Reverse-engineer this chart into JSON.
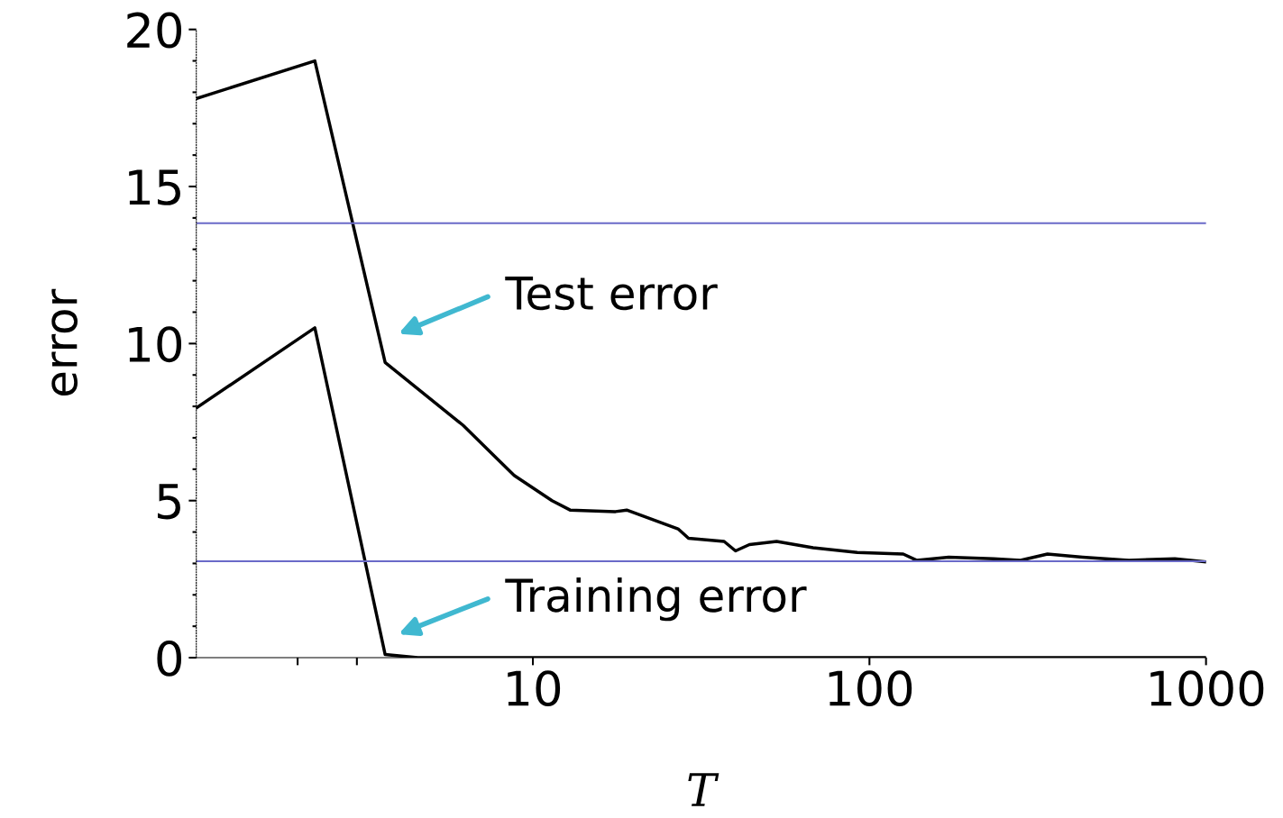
{
  "chart_data": {
    "type": "line",
    "xlabel": "T",
    "ylabel": "error",
    "log": "x",
    "grid": false,
    "legend": false,
    "marker": "none",
    "line_style": "solid",
    "xlim": [
      1,
      1000
    ],
    "xticks": [
      {
        "value": 2,
        "label": null
      },
      {
        "value": 3,
        "label": null
      },
      10,
      100,
      1000
    ],
    "ylim": [
      0,
      20
    ],
    "yticks": [
      0,
      {
        "value": 1,
        "label": null
      },
      {
        "value": 2,
        "label": null
      },
      {
        "value": 3,
        "label": null
      },
      {
        "value": 4,
        "label": null
      },
      5,
      {
        "value": 6,
        "label": null
      },
      {
        "value": 7,
        "label": null
      },
      {
        "value": 8,
        "label": null
      },
      {
        "value": 9,
        "label": null
      },
      10,
      {
        "value": 11,
        "label": null
      },
      {
        "value": 12,
        "label": null
      },
      {
        "value": 13,
        "label": null
      },
      {
        "value": 14,
        "label": null
      },
      15,
      {
        "value": 16,
        "label": null
      },
      {
        "value": 17,
        "label": null
      },
      {
        "value": 18,
        "label": null
      },
      {
        "value": 19,
        "label": null
      },
      20
    ],
    "series": [
      {
        "color": "#000000",
        "x": [
          1,
          2.25,
          3.64,
          6.2,
          8.8,
          11.4,
          12.9,
          17.6,
          19,
          27,
          29,
          37,
          40,
          44,
          53,
          68,
          92,
          126,
          138,
          172,
          234,
          281,
          338,
          430,
          590,
          808,
          1000
        ],
        "values": [
          17.8,
          19.0,
          9.4,
          7.4,
          5.8,
          5.0,
          4.7,
          4.65,
          4.7,
          4.1,
          3.8,
          3.7,
          3.4,
          3.6,
          3.7,
          3.5,
          3.35,
          3.3,
          3.1,
          3.2,
          3.15,
          3.1,
          3.3,
          3.2,
          3.1,
          3.15,
          3.05
        ]
      },
      {
        "color": "#000000",
        "x": [
          1,
          2.25,
          3.64,
          4.55,
          1000
        ],
        "values": [
          7.95,
          10.5,
          0.1,
          0,
          0
        ]
      }
    ],
    "ref_lines": [
      {
        "axis": "y",
        "value": 13.83,
        "color": "#6a6ac8"
      },
      {
        "axis": "y",
        "value": 3.07,
        "color": "#6a6ac8"
      }
    ],
    "annotations": [
      "Test error",
      "Training error"
    ]
  }
}
